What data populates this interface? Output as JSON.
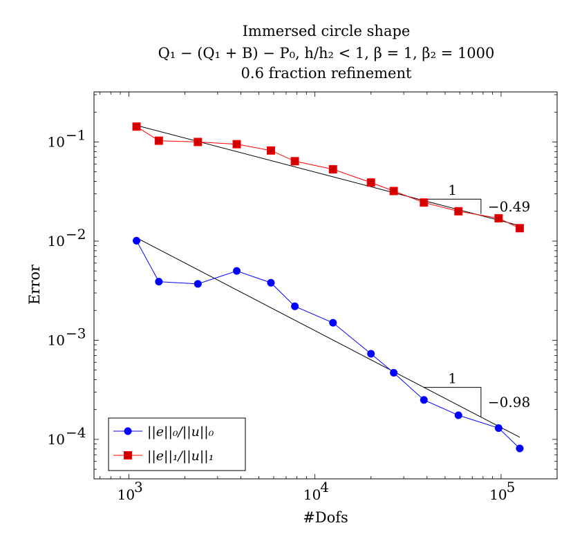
{
  "chart_data": {
    "type": "line",
    "title": "Immersed circle shape",
    "subtitle": "Q₁ − (Q₁ + B) − P₀, h/h₂ < 1, β = 1, β₂ = 1000",
    "title_line3": "0.6 fraction refinement",
    "xlabel": "#Dofs",
    "ylabel": "Error",
    "x_scale": "log",
    "y_scale": "log",
    "xlim": [
      650,
      200000
    ],
    "ylim": [
      4e-05,
      0.32
    ],
    "x_ticks": [
      {
        "value": 1000,
        "label": "10",
        "exp": "3"
      },
      {
        "value": 10000,
        "label": "10",
        "exp": "4"
      },
      {
        "value": 100000,
        "label": "10",
        "exp": "5"
      }
    ],
    "y_ticks": [
      {
        "value": 0.0001,
        "label": "10",
        "exp": "−4"
      },
      {
        "value": 0.001,
        "label": "10",
        "exp": "−3"
      },
      {
        "value": 0.01,
        "label": "10",
        "exp": "−2"
      },
      {
        "value": 0.1,
        "label": "10",
        "exp": "−1"
      }
    ],
    "grid": false,
    "legend_position": "bottom-left",
    "series": [
      {
        "name": "||e||₀/||u||₀",
        "color": "#0000ff",
        "marker": "circle",
        "x": [
          1100,
          1450,
          2350,
          3800,
          5800,
          7800,
          12500,
          20000,
          26500,
          38500,
          59000,
          97000,
          126000
        ],
        "y": [
          0.0101,
          0.0039,
          0.0037,
          0.005,
          0.0038,
          0.0022,
          0.0015,
          0.00073,
          0.00047,
          0.00025,
          0.000175,
          0.00013,
          8.1e-05
        ]
      },
      {
        "name": "||e||₁/||u||₁",
        "color": "#ff0000",
        "marker": "square",
        "x": [
          1100,
          1450,
          2350,
          3800,
          5800,
          7800,
          12500,
          20000,
          26500,
          38500,
          59000,
          97000,
          126000
        ],
        "y": [
          0.143,
          0.103,
          0.1,
          0.095,
          0.082,
          0.064,
          0.053,
          0.039,
          0.032,
          0.0245,
          0.02,
          0.017,
          0.0135
        ]
      }
    ],
    "fit_lines": [
      {
        "x": [
          1100,
          126000
        ],
        "y": [
          0.147,
          0.0143
        ],
        "color": "#000000"
      },
      {
        "x": [
          1100,
          126000
        ],
        "y": [
          0.0108,
          0.000105
        ],
        "color": "#000000"
      }
    ],
    "slope_triangles": [
      {
        "x": [
          38500,
          78000
        ],
        "y_top": 0.0265,
        "y_bottom": 0.0188,
        "run_label": "1",
        "slope_label": "−0.49"
      },
      {
        "x": [
          38500,
          78000
        ],
        "y_top": 0.000335,
        "y_bottom": 0.000168,
        "run_label": "1",
        "slope_label": "−0.98"
      }
    ]
  }
}
